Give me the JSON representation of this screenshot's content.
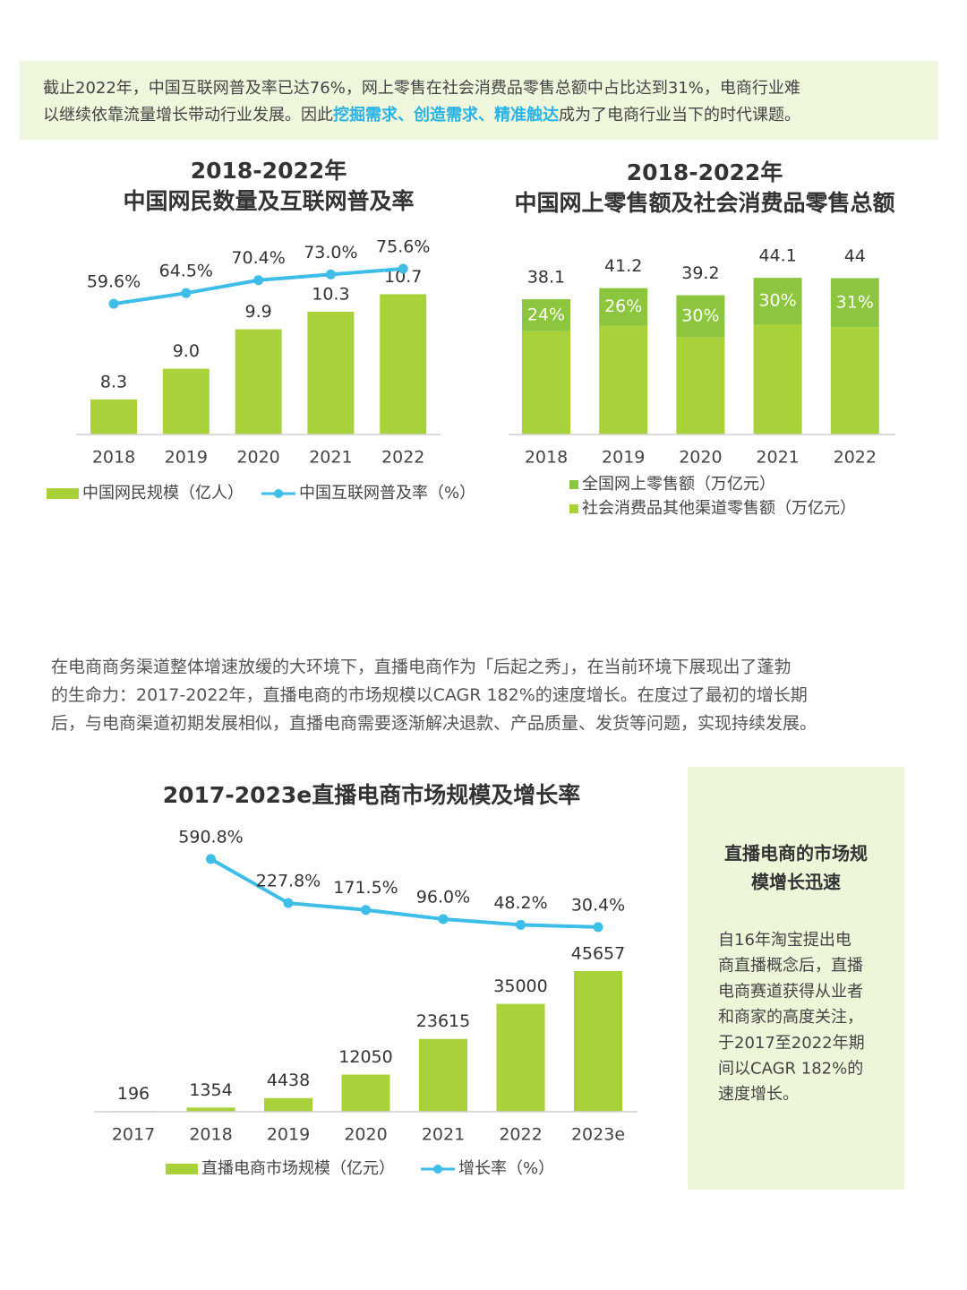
{
  "intro": {
    "line1": "截止2022年，中国互联网普及率已达76%，网上零售在社会消费品零售总额中占比达到31%，电商行业难",
    "line2_before": "以继续依靠流量增长带动行业发展。因此",
    "line2_highlight": "挖掘需求、创造需求、精准触达",
    "line2_after": "成为了电商行业当下的时代课题。"
  },
  "paragraph": {
    "lines": [
      "在电商商务渠道整体增速放缓的大环境下，直播电商作为「后起之秀」，在当前环境下展现出了蓬勃",
      "的生命力：2017-2022年，直播电商的市场规模以CAGR 182%的速度增长。在度过了最初的增长期",
      "后，与电商渠道初期发展相似，直播电商需要逐渐解决退款、产品质量、发货等问题，实现持续发展。"
    ]
  },
  "sidebar": {
    "title_lines": [
      "直播电商的市场规",
      "模增长迅速"
    ],
    "body_lines": [
      "自16年淘宝提出电",
      "商直播概念后，直播",
      "电商赛道获得从业者",
      "和商家的高度关注，",
      "于2017至2022年期",
      "间以CAGR 182%的",
      "速度增长。"
    ]
  },
  "chart_data": [
    {
      "type": "bar-line",
      "title": [
        "2018-2022年",
        "中国网民数量及互联网普及率"
      ],
      "categories": [
        "2018",
        "2019",
        "2020",
        "2021",
        "2022"
      ],
      "series": [
        {
          "name": "中国网民规模（亿人）",
          "color": "#a8d13a",
          "values": [
            8.3,
            9.0,
            9.9,
            10.3,
            10.7
          ],
          "value_labels": [
            "8.3",
            "9.0",
            "9.9",
            "10.3",
            "10.7"
          ]
        },
        {
          "name": "中国互联网普及率（%）",
          "color": "#3dbde8",
          "axis": "y2",
          "values": [
            59.6,
            64.5,
            70.4,
            73.0,
            75.6
          ],
          "value_labels": [
            "59.6%",
            "64.5%",
            "70.4%",
            "73.0%",
            "75.6%"
          ]
        }
      ],
      "ylim": [
        7.5,
        12.2
      ],
      "y2lim": [
        0,
        94
      ]
    },
    {
      "type": "stacked-bar",
      "title": [
        "2018-2022年",
        "中国网上零售额及社会消费品零售总额"
      ],
      "categories": [
        "2018",
        "2019",
        "2020",
        "2021",
        "2022"
      ],
      "series": [
        {
          "name": "全国网上零售额（万亿元）",
          "color": "#8cc63e",
          "values": [
            9.0,
            10.6,
            11.8,
            13.1,
            13.8
          ]
        },
        {
          "name": "社会消费品其他渠道零售额（万亿元）",
          "color": "#a8d13a",
          "values": [
            29.1,
            30.6,
            27.4,
            31.0,
            30.2
          ]
        }
      ],
      "totals": [
        38.1,
        41.2,
        39.2,
        44.1,
        44.0
      ],
      "shares": [
        24,
        26,
        30,
        30,
        31
      ],
      "share_labels": [
        "24%",
        "26%",
        "30%",
        "30%",
        "31%"
      ],
      "ylim": [
        0,
        58
      ]
    },
    {
      "type": "bar-line",
      "title": [
        "2017-2023e直播电商市场规模及增长率"
      ],
      "categories": [
        "2017",
        "2018",
        "2019",
        "2020",
        "2021",
        "2022",
        "2023e"
      ],
      "series": [
        {
          "name": "直播电商市场规模（亿元）",
          "color": "#a8d13a",
          "values": [
            196,
            1354,
            4438,
            12050,
            23615,
            35000,
            45657
          ]
        },
        {
          "name": "增长率（%）",
          "color": "#3dbde8",
          "axis": "y2",
          "values": [
            null,
            590.8,
            227.8,
            171.5,
            96.0,
            48.2,
            30.4
          ],
          "value_labels": [
            null,
            "590.8%",
            "227.8%",
            "171.5%",
            "96.0%",
            "48.2%",
            "30.4%"
          ]
        }
      ],
      "ylim": [
        0,
        93000
      ],
      "y2lim": [
        -1490,
        870
      ]
    }
  ]
}
